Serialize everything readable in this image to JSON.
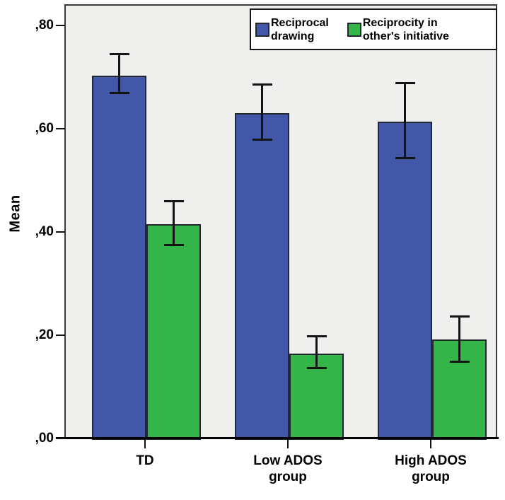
{
  "figure": {
    "background": "#FFFFFF",
    "plot_background": "#EFEFED",
    "plot_border_color": "#3A3A3A",
    "axis_line_color": "#000000",
    "bar_border_color": "#23272E",
    "error_bar_color": "#141414",
    "text_color": "#000000"
  },
  "chart_data": {
    "type": "bar",
    "title": "",
    "xlabel": "",
    "ylabel": "Mean",
    "grid": false,
    "legend_position": "top-right",
    "ylim": [
      0,
      0.84
    ],
    "categories": [
      "TD",
      "Low ADOS\ngroup",
      "High ADOS\ngroup"
    ],
    "y_ticks": [
      {
        "label": ",80",
        "value": 0.8
      },
      {
        "label": ",60",
        "value": 0.6
      },
      {
        "label": ",40",
        "value": 0.4
      },
      {
        "label": ",20",
        "value": 0.2
      },
      {
        "label": ",00",
        "value": 0.0
      }
    ],
    "series": [
      {
        "name": "Reciprocal\ndrawing",
        "color": "#4257A8",
        "values": [
          0.705,
          0.633,
          0.617
        ],
        "error_low": [
          0.671,
          0.581,
          0.545
        ],
        "error_high": [
          0.748,
          0.689,
          0.692
        ]
      },
      {
        "name": "Reciprocity in\nother's initiative",
        "color": "#33B54A",
        "values": [
          0.418,
          0.167,
          0.195
        ],
        "error_low": [
          0.377,
          0.138,
          0.151
        ],
        "error_high": [
          0.463,
          0.201,
          0.24
        ]
      }
    ]
  }
}
